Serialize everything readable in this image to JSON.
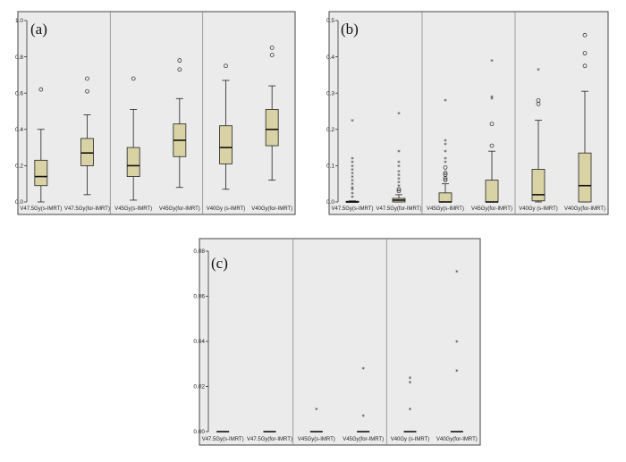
{
  "chart_data": [
    {
      "id": "a",
      "type": "box",
      "panel_label": "(a)",
      "ylim": [
        0,
        1.0
      ],
      "ticks": [
        0.0,
        0.2,
        0.4,
        0.6,
        0.8,
        1.0
      ],
      "tick_labels": [
        "0.0",
        "0.2",
        "0.4",
        "0.6",
        "0.8",
        "1.0"
      ],
      "separators_after": [
        1,
        3
      ],
      "series": [
        {
          "name": "V47.5Gy(s-IMRT)",
          "min": 0.0,
          "q1": 0.09,
          "median": 0.14,
          "q3": 0.23,
          "max": 0.4,
          "outliers": [
            0.62
          ],
          "extremes": []
        },
        {
          "name": "V47.5Gy(for-IMRT)",
          "min": 0.04,
          "q1": 0.2,
          "median": 0.27,
          "q3": 0.35,
          "max": 0.48,
          "outliers": [
            0.61,
            0.68
          ],
          "extremes": []
        },
        {
          "name": "V45Gy(s-IMRT)",
          "min": 0.01,
          "q1": 0.14,
          "median": 0.2,
          "q3": 0.3,
          "max": 0.51,
          "outliers": [
            0.68
          ],
          "extremes": []
        },
        {
          "name": "V45Gy(for-IMRT)",
          "min": 0.08,
          "q1": 0.25,
          "median": 0.34,
          "q3": 0.43,
          "max": 0.57,
          "outliers": [
            0.73,
            0.78
          ],
          "extremes": []
        },
        {
          "name": "V40Gy (s-IMRT)",
          "min": 0.07,
          "q1": 0.21,
          "median": 0.3,
          "q3": 0.42,
          "max": 0.67,
          "outliers": [
            0.75
          ],
          "extremes": []
        },
        {
          "name": "V40Gy(for-IMRT)",
          "min": 0.12,
          "q1": 0.31,
          "median": 0.4,
          "q3": 0.51,
          "max": 0.64,
          "outliers": [
            0.81,
            0.85
          ],
          "extremes": []
        }
      ]
    },
    {
      "id": "b",
      "type": "box",
      "panel_label": "(b)",
      "ylim": [
        0,
        0.5
      ],
      "ticks": [
        0.0,
        0.1,
        0.2,
        0.3,
        0.4,
        0.5
      ],
      "tick_labels": [
        "0.0",
        "0.1",
        "0.2",
        "0.3",
        "0.4",
        "0.5"
      ],
      "separators_after": [
        1,
        3
      ],
      "series": [
        {
          "name": "V47.5Gy(s-IMRT)",
          "min": 0.0,
          "q1": 0.0,
          "median": 0.0,
          "q3": 0.002,
          "max": 0.003,
          "outliers": [],
          "extremes": [
            0.015,
            0.025,
            0.035,
            0.04,
            0.05,
            0.06,
            0.07,
            0.08,
            0.09,
            0.1,
            0.11,
            0.12,
            0.225
          ]
        },
        {
          "name": "V47.5Gy(for-IMRT)",
          "min": 0.0,
          "q1": 0.0,
          "median": 0.005,
          "q3": 0.01,
          "max": 0.02,
          "outliers": [
            0.03,
            0.035
          ],
          "extremes": [
            0.045,
            0.055,
            0.065,
            0.075,
            0.085,
            0.1,
            0.11,
            0.14,
            0.245
          ]
        },
        {
          "name": "V45Gy(s-IMRT)",
          "min": 0.0,
          "q1": 0.0,
          "median": 0.0,
          "q3": 0.025,
          "max": 0.05,
          "outliers": [
            0.06,
            0.065,
            0.075,
            0.08,
            0.095
          ],
          "extremes": [
            0.11,
            0.12,
            0.14,
            0.16,
            0.17,
            0.28
          ]
        },
        {
          "name": "V45Gy(for-IMRT)",
          "min": 0.0,
          "q1": 0.0,
          "median": 0.0,
          "q3": 0.06,
          "max": 0.14,
          "outliers": [
            0.155,
            0.215
          ],
          "extremes": [
            0.285,
            0.29,
            0.39
          ]
        },
        {
          "name": "V40Gy (s-IMRT)",
          "min": 0.0,
          "q1": 0.003,
          "median": 0.02,
          "q3": 0.09,
          "max": 0.225,
          "outliers": [
            0.27,
            0.28
          ],
          "extremes": [
            0.365
          ]
        },
        {
          "name": "V40Gy(for-IMRT)",
          "min": 0.0,
          "q1": 0.0,
          "median": 0.045,
          "q3": 0.135,
          "max": 0.305,
          "outliers": [
            0.375,
            0.41,
            0.46
          ],
          "extremes": []
        }
      ]
    },
    {
      "id": "c",
      "type": "box",
      "panel_label": "(c)",
      "ylim": [
        0,
        0.08
      ],
      "ticks": [
        0.0,
        0.02,
        0.04,
        0.06,
        0.08
      ],
      "tick_labels": [
        "0.00",
        "0.02",
        "0.04",
        "0.06",
        "0.08"
      ],
      "separators_after": [
        1,
        3
      ],
      "series": [
        {
          "name": "V47.5Gy(s-IMRT)",
          "min": 0.0,
          "q1": 0.0,
          "median": 0.0,
          "q3": 0.0,
          "max": 0.0,
          "outliers": [],
          "extremes": []
        },
        {
          "name": "V47.5Gy(for-IMRT)",
          "min": 0.0,
          "q1": 0.0,
          "median": 0.0,
          "q3": 0.0,
          "max": 0.0,
          "outliers": [],
          "extremes": []
        },
        {
          "name": "V45Gy(s-IMRT)",
          "min": 0.0,
          "q1": 0.0,
          "median": 0.0,
          "q3": 0.0,
          "max": 0.0,
          "outliers": [],
          "extremes": [
            0.01
          ]
        },
        {
          "name": "V45Gy(for-IMRT)",
          "min": 0.0,
          "q1": 0.0,
          "median": 0.0,
          "q3": 0.0,
          "max": 0.0,
          "outliers": [],
          "extremes": [
            0.007,
            0.028
          ]
        },
        {
          "name": "V40Gy (s-IMRT)",
          "min": 0.0,
          "q1": 0.0,
          "median": 0.0,
          "q3": 0.0,
          "max": 0.0,
          "outliers": [],
          "extremes": [
            0.01,
            0.022,
            0.024
          ]
        },
        {
          "name": "V40Gy(for-IMRT)",
          "min": 0.0,
          "q1": 0.0,
          "median": 0.0,
          "q3": 0.0,
          "max": 0.0,
          "outliers": [],
          "extremes": [
            0.027,
            0.04,
            0.071
          ]
        }
      ]
    }
  ]
}
